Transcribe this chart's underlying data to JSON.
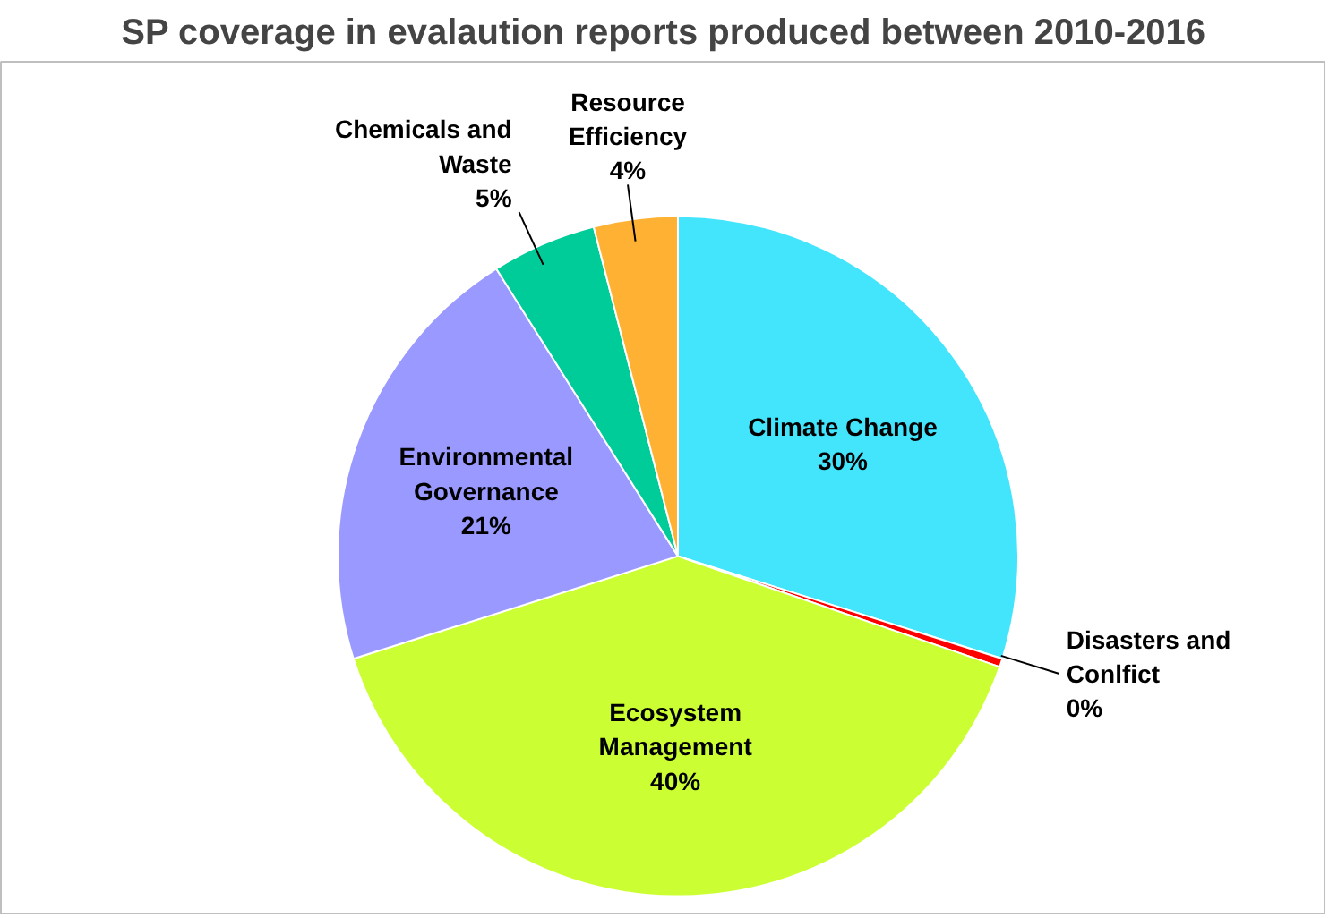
{
  "chart_data": {
    "type": "pie",
    "title": "SP coverage in evalaution reports produced between 2010-2016",
    "categories": [
      "Climate Change",
      "Disasters and Conlfict",
      "Ecosystem Management",
      "Environmental Governance",
      "Chemicals and Waste",
      "Resource Efficiency"
    ],
    "values": [
      30,
      0.4,
      40,
      21,
      5,
      4
    ],
    "value_labels": [
      "30%",
      "0%",
      "40%",
      "21%",
      "5%",
      "4%"
    ],
    "colors": [
      "#43e5fd",
      "#ff0000",
      "#ccff33",
      "#9999ff",
      "#00cc99",
      "#ffb133"
    ],
    "legend": false
  }
}
